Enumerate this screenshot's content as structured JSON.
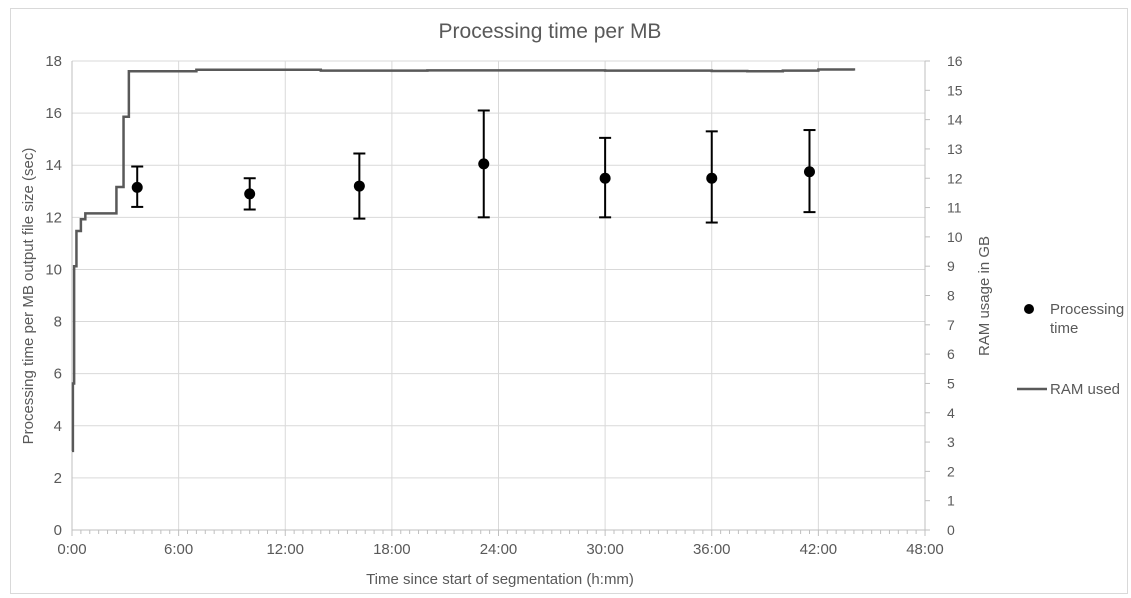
{
  "chart_data": {
    "type": "scatter",
    "title": "Processing time per MB",
    "xlabel": "Time since start of segmentation (h:mm)",
    "ylabel": "Processing time per MB output file size (sec)",
    "y2label": "RAM usage in GB",
    "xlim": [
      0,
      2880
    ],
    "ylim": [
      0,
      18
    ],
    "y2lim": [
      0,
      16
    ],
    "x_ticks": [
      0,
      360,
      720,
      1080,
      1440,
      1800,
      2160,
      2520,
      2880
    ],
    "x_tick_labels": [
      "0:00",
      "6:00",
      "12:00",
      "18:00",
      "24:00",
      "30:00",
      "36:00",
      "42:00",
      "48:00"
    ],
    "y_ticks": [
      0,
      2,
      4,
      6,
      8,
      10,
      12,
      14,
      16,
      18
    ],
    "y2_ticks": [
      0,
      1,
      2,
      3,
      4,
      5,
      6,
      7,
      8,
      9,
      10,
      11,
      12,
      13,
      14,
      15,
      16
    ],
    "grid": true,
    "legend_position": "right",
    "legend": [
      "Processing time",
      "RAM used"
    ],
    "series": [
      {
        "name": "Processing time",
        "axis": "left",
        "marker": "circle",
        "color": "#000000",
        "points": [
          {
            "x": 3.67,
            "y": 13.15,
            "low": 12.4,
            "high": 13.95
          },
          {
            "x": 10.0,
            "y": 12.9,
            "low": 12.3,
            "high": 13.5
          },
          {
            "x": 16.17,
            "y": 13.2,
            "low": 11.95,
            "high": 14.45
          },
          {
            "x": 23.17,
            "y": 14.05,
            "low": 12.0,
            "high": 16.1
          },
          {
            "x": 30.0,
            "y": 13.5,
            "low": 12.0,
            "high": 15.05
          },
          {
            "x": 36.0,
            "y": 13.5,
            "low": 11.8,
            "high": 15.3
          },
          {
            "x": 41.5,
            "y": 13.75,
            "low": 12.2,
            "high": 15.35
          }
        ]
      },
      {
        "name": "RAM used",
        "axis": "right",
        "type": "line",
        "step": true,
        "color": "#595959",
        "x": [
          0,
          0.05,
          0.12,
          0.25,
          0.5,
          0.75,
          1.0,
          2.3,
          2.5,
          2.6,
          2.8,
          2.9,
          3.0,
          3.15,
          3.2,
          5,
          7,
          10,
          14,
          20,
          30,
          36,
          38,
          40,
          42,
          44
        ],
        "y": [
          2.7,
          5.0,
          9.0,
          10.2,
          10.6,
          10.8,
          10.8,
          10.8,
          11.7,
          11.7,
          11.7,
          14.1,
          14.1,
          14.1,
          15.65,
          15.65,
          15.7,
          15.7,
          15.67,
          15.68,
          15.67,
          15.66,
          15.65,
          15.67,
          15.71,
          15.67
        ]
      }
    ]
  }
}
